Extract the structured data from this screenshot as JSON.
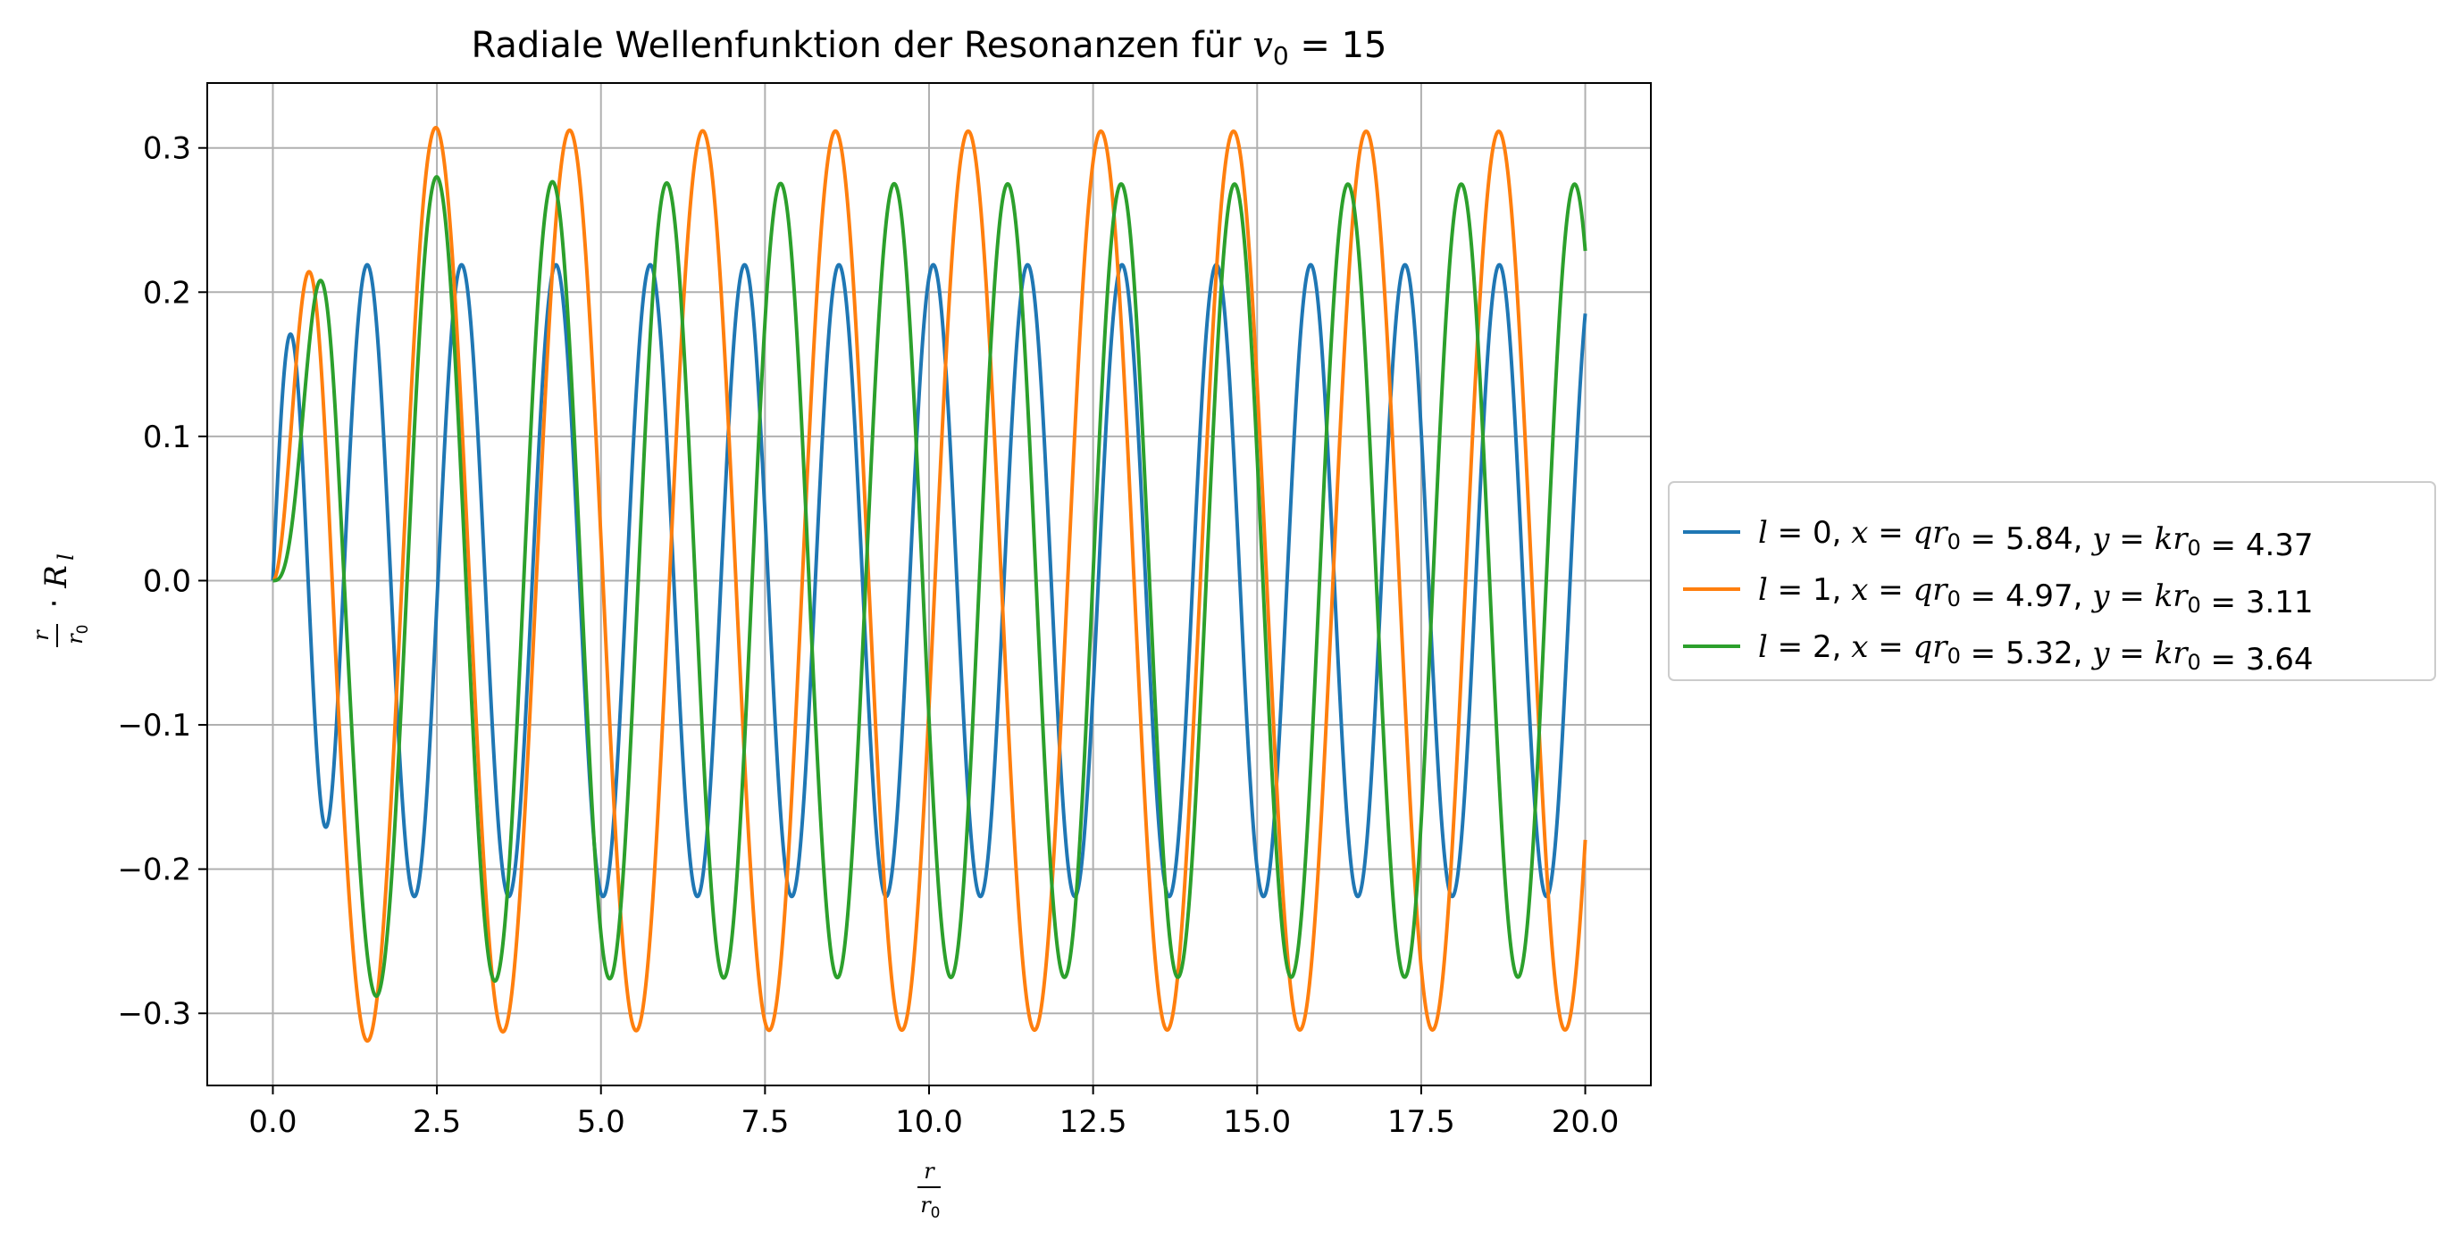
{
  "chart_data": {
    "type": "line",
    "title_prefix": "Radiale Wellenfunktion der Resonanzen für ",
    "title_math_var": "v",
    "title_math_sub": "0",
    "title_math_rest": " = 15",
    "xlabel": "r/r0",
    "ylabel": "r/r0 · R_l",
    "xlim": [
      -1.0,
      21.0
    ],
    "ylim": [
      -0.35,
      0.345
    ],
    "xticks": [
      0.0,
      2.5,
      5.0,
      7.5,
      10.0,
      12.5,
      15.0,
      17.5,
      20.0
    ],
    "xtick_labels": [
      "0.0",
      "2.5",
      "5.0",
      "7.5",
      "10.0",
      "12.5",
      "15.0",
      "17.5",
      "20.0"
    ],
    "yticks": [
      -0.3,
      -0.2,
      -0.1,
      0.0,
      0.1,
      0.2,
      0.3
    ],
    "ytick_labels": [
      "−0.3",
      "−0.2",
      "−0.1",
      "0.0",
      "0.1",
      "0.2",
      "0.3"
    ],
    "grid": true,
    "legend_position": "outside-right",
    "series": [
      {
        "name": "l = 0, x = qr0 = 5.84, y = kr0 = 4.37",
        "l": 0,
        "x": 5.84,
        "y": 4.37,
        "label_parts": {
          "l": "0",
          "x": "5.84",
          "y": "4.37"
        },
        "color": "#1f77b4",
        "inner_amplitude": 0.172,
        "outer_amplitude": 0.219
      },
      {
        "name": "l = 1, x = qr0 = 4.97, y = kr0 = 3.11",
        "l": 1,
        "x": 4.97,
        "y": 3.11,
        "label_parts": {
          "l": "1",
          "x": "4.97",
          "y": "3.11"
        },
        "color": "#ff7f0e",
        "inner_amplitude": 0.214,
        "outer_amplitude": 0.312
      },
      {
        "name": "l = 2, x = qr0 = 5.32, y = kr0 = 3.64",
        "l": 2,
        "x": 5.32,
        "y": 3.64,
        "label_parts": {
          "l": "2",
          "x": "5.32",
          "y": "3.64"
        },
        "color": "#2ca02c",
        "inner_amplitude": 0.209,
        "outer_amplitude": 0.276
      }
    ],
    "x_range": [
      0.0,
      20.0
    ]
  }
}
